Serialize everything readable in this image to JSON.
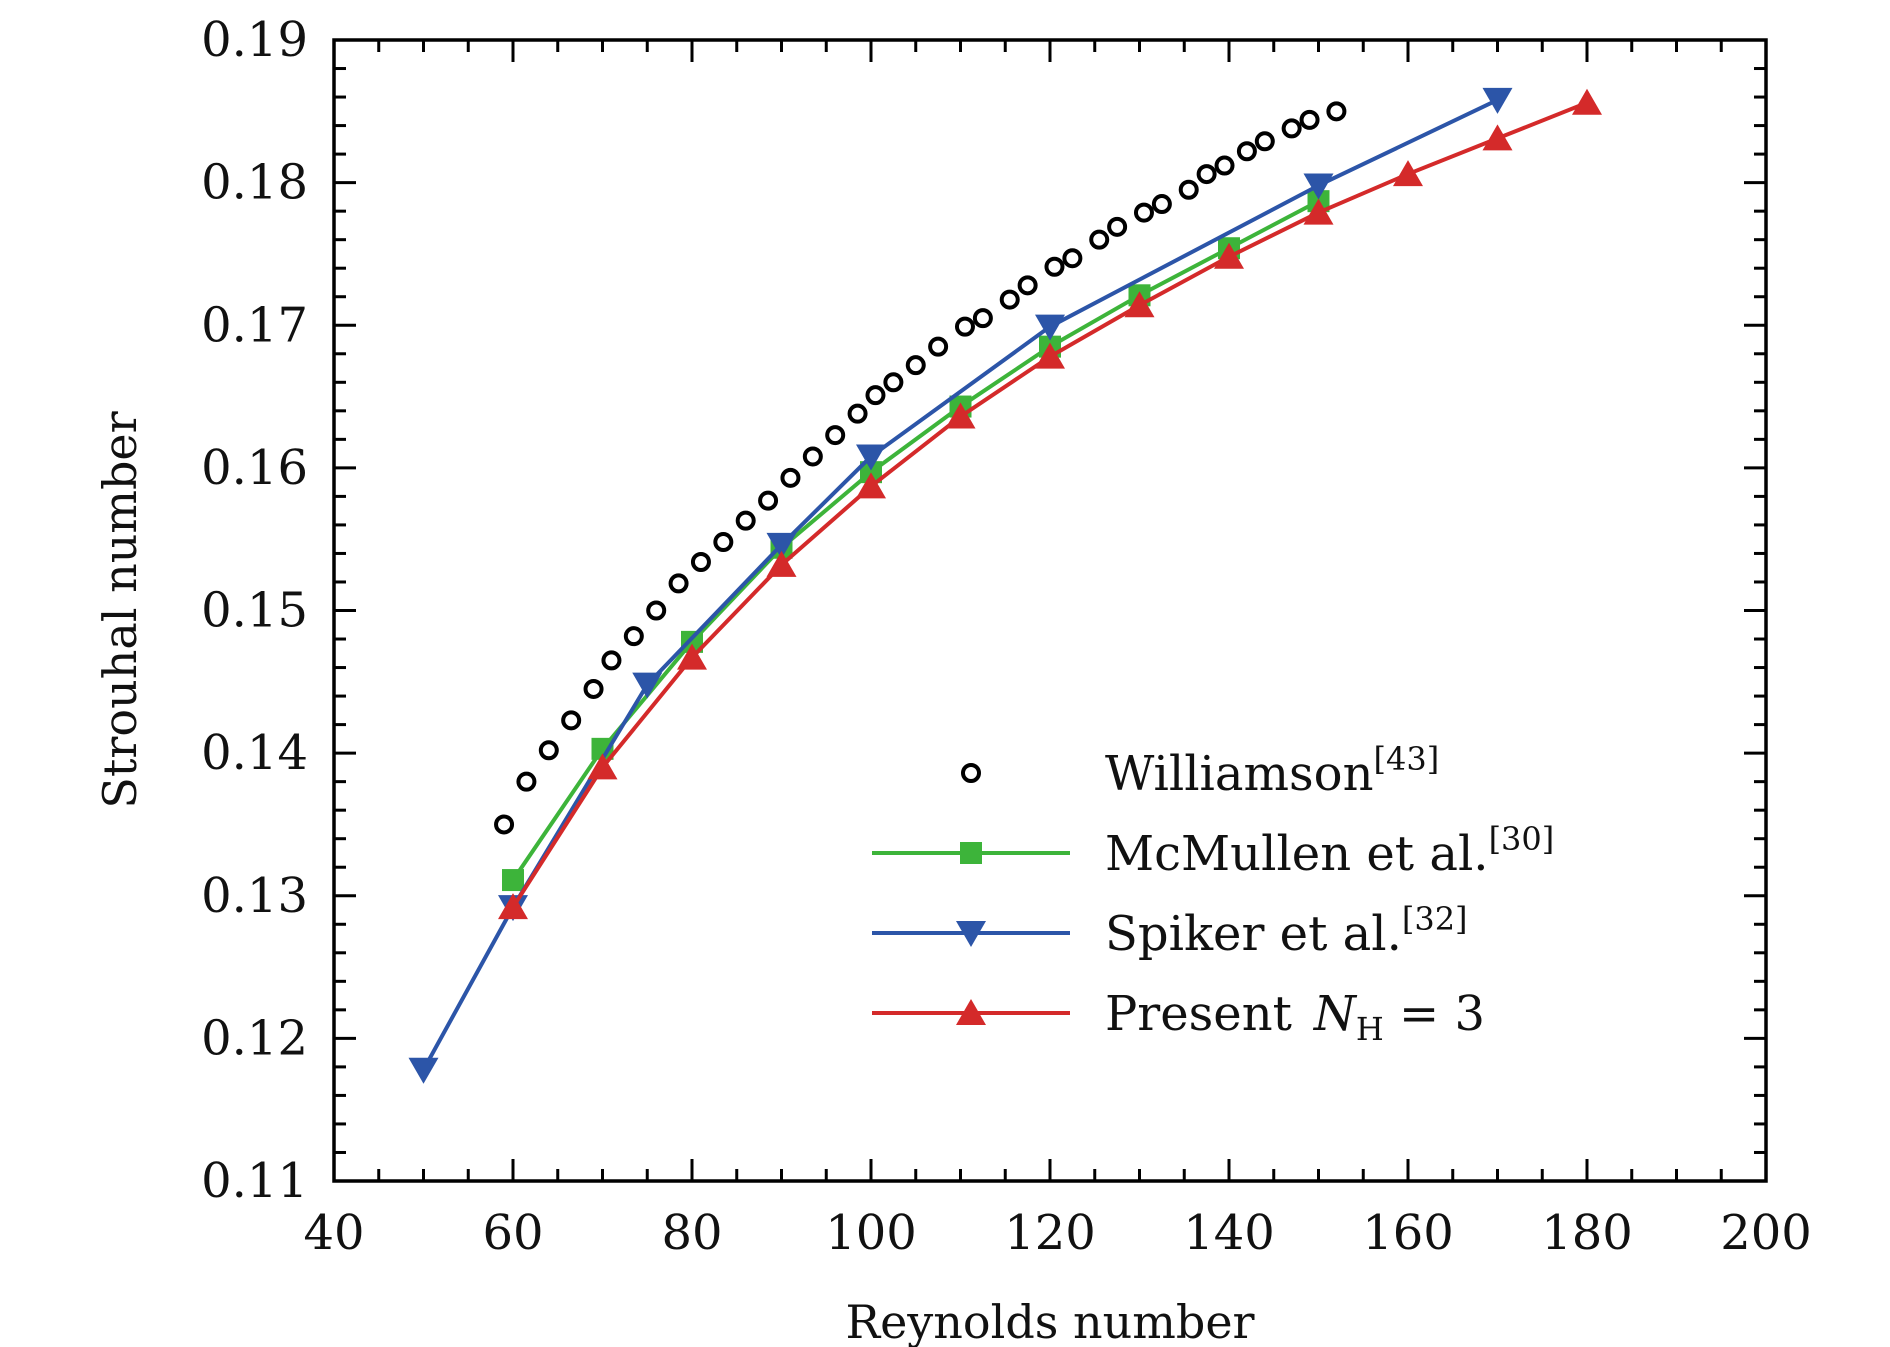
{
  "chart_data": {
    "type": "line",
    "title": "",
    "xlabel": "Reynolds number",
    "ylabel": "Strouhal number",
    "xlim": [
      40,
      200
    ],
    "ylim": [
      0.11,
      0.19
    ],
    "x_ticks": [
      "40",
      "60",
      "80",
      "100",
      "120",
      "140",
      "160",
      "180",
      "200"
    ],
    "y_ticks": [
      "0.11",
      "0.12",
      "0.13",
      "0.14",
      "0.15",
      "0.16",
      "0.17",
      "0.18",
      "0.19"
    ],
    "grid": false,
    "legend_position": "bottom-right",
    "series": [
      {
        "name": "Williamson",
        "cite": "[43]",
        "color": "#000000",
        "marker": "open-circle",
        "line": false,
        "points": [
          [
            59,
            0.135
          ],
          [
            61.5,
            0.138
          ],
          [
            64,
            0.1402
          ],
          [
            66.5,
            0.1423
          ],
          [
            69,
            0.1445
          ],
          [
            71,
            0.1465
          ],
          [
            73.5,
            0.1482
          ],
          [
            76,
            0.15
          ],
          [
            78.5,
            0.1519
          ],
          [
            81,
            0.1534
          ],
          [
            83.5,
            0.1548
          ],
          [
            86,
            0.1563
          ],
          [
            88.5,
            0.1577
          ],
          [
            91,
            0.1593
          ],
          [
            93.5,
            0.1608
          ],
          [
            96,
            0.1623
          ],
          [
            98.5,
            0.1638
          ],
          [
            100.5,
            0.1651
          ],
          [
            102.5,
            0.166
          ],
          [
            105,
            0.1672
          ],
          [
            107.5,
            0.1685
          ],
          [
            110.5,
            0.1699
          ],
          [
            112.5,
            0.1705
          ],
          [
            115.5,
            0.1718
          ],
          [
            117.5,
            0.1728
          ],
          [
            120.5,
            0.1741
          ],
          [
            122.5,
            0.1747
          ],
          [
            125.5,
            0.176
          ],
          [
            127.5,
            0.1769
          ],
          [
            130.5,
            0.1779
          ],
          [
            132.5,
            0.1785
          ],
          [
            135.5,
            0.1795
          ],
          [
            137.5,
            0.1806
          ],
          [
            139.5,
            0.1812
          ],
          [
            142,
            0.1822
          ],
          [
            144,
            0.1829
          ],
          [
            147,
            0.1838
          ],
          [
            149,
            0.1844
          ],
          [
            152,
            0.185
          ]
        ]
      },
      {
        "name": "McMullen et al.",
        "cite": "[30]",
        "color": "#3db43a",
        "marker": "square",
        "line": true,
        "points": [
          [
            60,
            0.1311
          ],
          [
            70,
            0.1403
          ],
          [
            80,
            0.1478
          ],
          [
            90,
            0.1544
          ],
          [
            100,
            0.1597
          ],
          [
            110,
            0.1643
          ],
          [
            120,
            0.1685
          ],
          [
            130,
            0.1721
          ],
          [
            140,
            0.1754
          ],
          [
            150,
            0.1787
          ]
        ]
      },
      {
        "name": "Spiker et al.",
        "cite": "[32]",
        "color": "#2c55a8",
        "marker": "triangle-down",
        "line": true,
        "points": [
          [
            50,
            0.1178
          ],
          [
            60,
            0.1292
          ],
          [
            75,
            0.1448
          ],
          [
            90,
            0.1546
          ],
          [
            100,
            0.1608
          ],
          [
            120,
            0.1699
          ],
          [
            150,
            0.1798
          ],
          [
            170,
            0.1858
          ]
        ]
      },
      {
        "name": "Present",
        "math": "N",
        "math_sub": "H",
        "math_rest": " = 3",
        "color": "#d42a2a",
        "marker": "triangle-up",
        "line": true,
        "points": [
          [
            60,
            0.1292
          ],
          [
            70,
            0.139
          ],
          [
            80,
            0.1467
          ],
          [
            90,
            0.1532
          ],
          [
            100,
            0.1587
          ],
          [
            110,
            0.1636
          ],
          [
            120,
            0.1678
          ],
          [
            130,
            0.1714
          ],
          [
            140,
            0.1748
          ],
          [
            150,
            0.1779
          ],
          [
            160,
            0.1806
          ],
          [
            170,
            0.1831
          ],
          [
            180,
            0.1856
          ]
        ]
      }
    ]
  }
}
